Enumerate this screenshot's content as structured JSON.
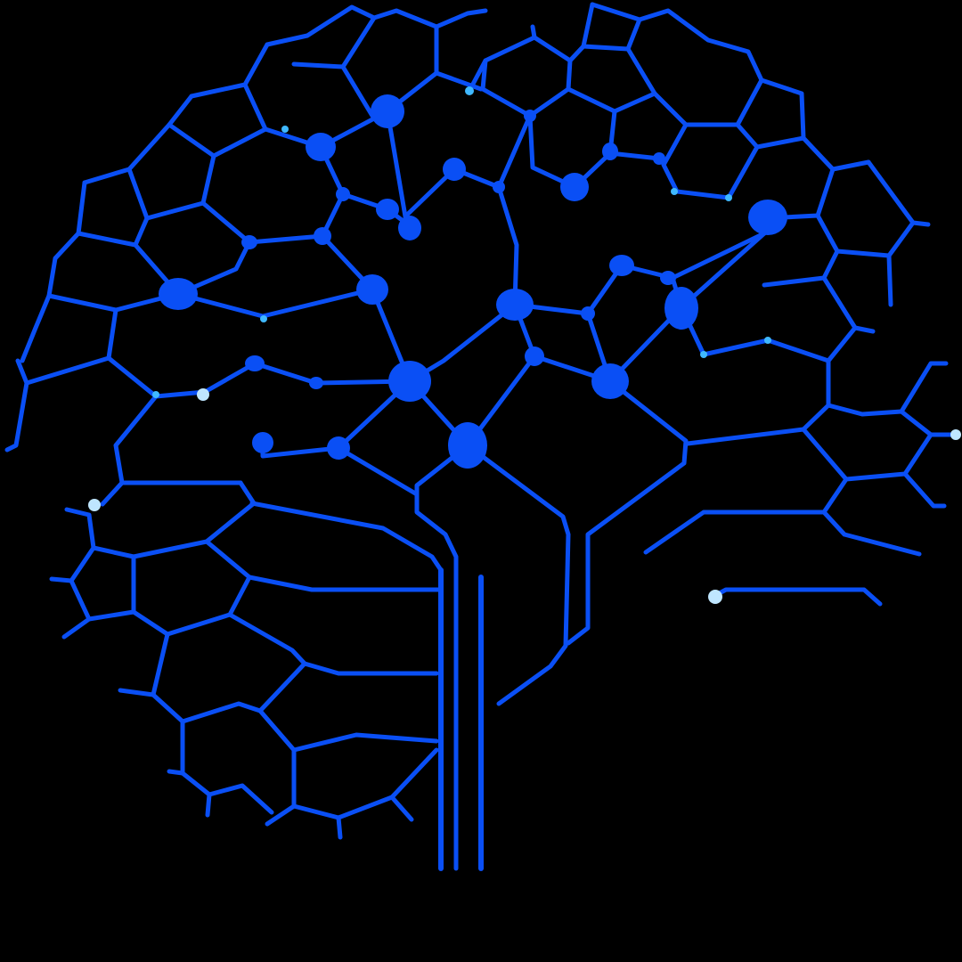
{
  "artwork": {
    "subject": "brain-circuit-tree",
    "background_color": "#000000",
    "line_color": "#0a4ff5",
    "highlight_color": "#bfe6ff",
    "accent_color": "#3fb8ff"
  }
}
